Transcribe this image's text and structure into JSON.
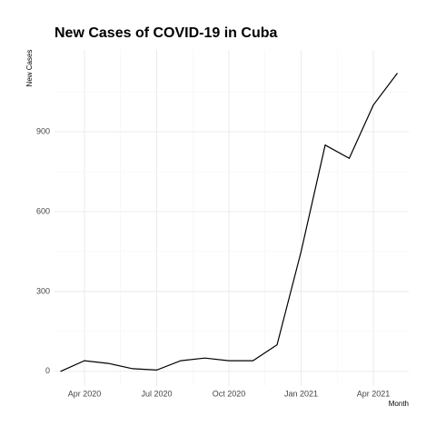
{
  "chart_data": {
    "type": "line",
    "title": "New Cases of COVID-19 in Cuba",
    "x_label": "Month",
    "y_label": "New Cases",
    "x": [
      "2020-03",
      "2020-04",
      "2020-05",
      "2020-06",
      "2020-07",
      "2020-08",
      "2020-09",
      "2020-10",
      "2020-11",
      "2020-12",
      "2021-01",
      "2021-02",
      "2021-03",
      "2021-04",
      "2021-05"
    ],
    "series": [
      {
        "name": "New Cases",
        "color": "#000000",
        "values": [
          0,
          40,
          30,
          10,
          5,
          40,
          50,
          40,
          40,
          100,
          450,
          850,
          800,
          1000,
          1120
        ]
      }
    ],
    "xticks": [
      {
        "value": "2020-04",
        "label": "Apr 2020"
      },
      {
        "value": "2020-07",
        "label": "Jul 2020"
      },
      {
        "value": "2020-10",
        "label": "Oct 2020"
      },
      {
        "value": "2021-01",
        "label": "Jan 2021"
      },
      {
        "value": "2021-04",
        "label": "Apr 2021"
      }
    ],
    "ylim": [
      -55,
      1207
    ],
    "yticks": [
      0,
      300,
      600,
      900
    ],
    "grid": true
  }
}
